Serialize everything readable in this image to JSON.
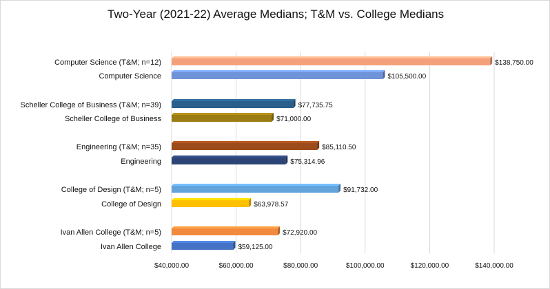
{
  "chart_data": {
    "type": "bar",
    "orientation": "horizontal",
    "title": "Two-Year (2021-22) Average Medians; T&M vs. College Medians",
    "xlabel": "",
    "ylabel": "",
    "xlim": [
      40000,
      140000
    ],
    "grid": true,
    "legend": "none",
    "xticks": [
      "$40,000.00",
      "$60,000.00",
      "$80,000.00",
      "$100,000.00",
      "$120,000.00",
      "$140,000.00"
    ],
    "categories": [
      {
        "label": "Computer Science (T&M; n=12)",
        "value": 138750,
        "value_label": "$138,750.00",
        "color": "#f4a07a"
      },
      {
        "label": "Computer Science",
        "value": 105500,
        "value_label": "$105,500.00",
        "color": "#6f93d8"
      },
      {
        "label": "Scheller College of Business (T&M; n=39)",
        "value": 77735.75,
        "value_label": "$77,735.75",
        "color": "#2a5f8c"
      },
      {
        "label": "Scheller College of Business",
        "value": 71000,
        "value_label": "$71,000.00",
        "color": "#9b7d14"
      },
      {
        "label": "Engineering (T&M; n=35)",
        "value": 85110.5,
        "value_label": "$85,110.50",
        "color": "#9c4b1a"
      },
      {
        "label": "Engineering ",
        "value": 75314.96,
        "value_label": "$75,314.96",
        "color": "#2c4576"
      },
      {
        "label": "College of Design (T&M; n=5)",
        "value": 91732,
        "value_label": "$91,732.00",
        "color": "#63a3dc"
      },
      {
        "label": "College of Design",
        "value": 63978.57,
        "value_label": "$63,978.57",
        "color": "#ffc000"
      },
      {
        "label": "Ivan Allen College (T&M; n=5)",
        "value": 72920,
        "value_label": "$72,920.00",
        "color": "#f28a3e"
      },
      {
        "label": "Ivan Allen College",
        "value": 59125,
        "value_label": "$59,125.00",
        "color": "#4472c4"
      }
    ]
  }
}
